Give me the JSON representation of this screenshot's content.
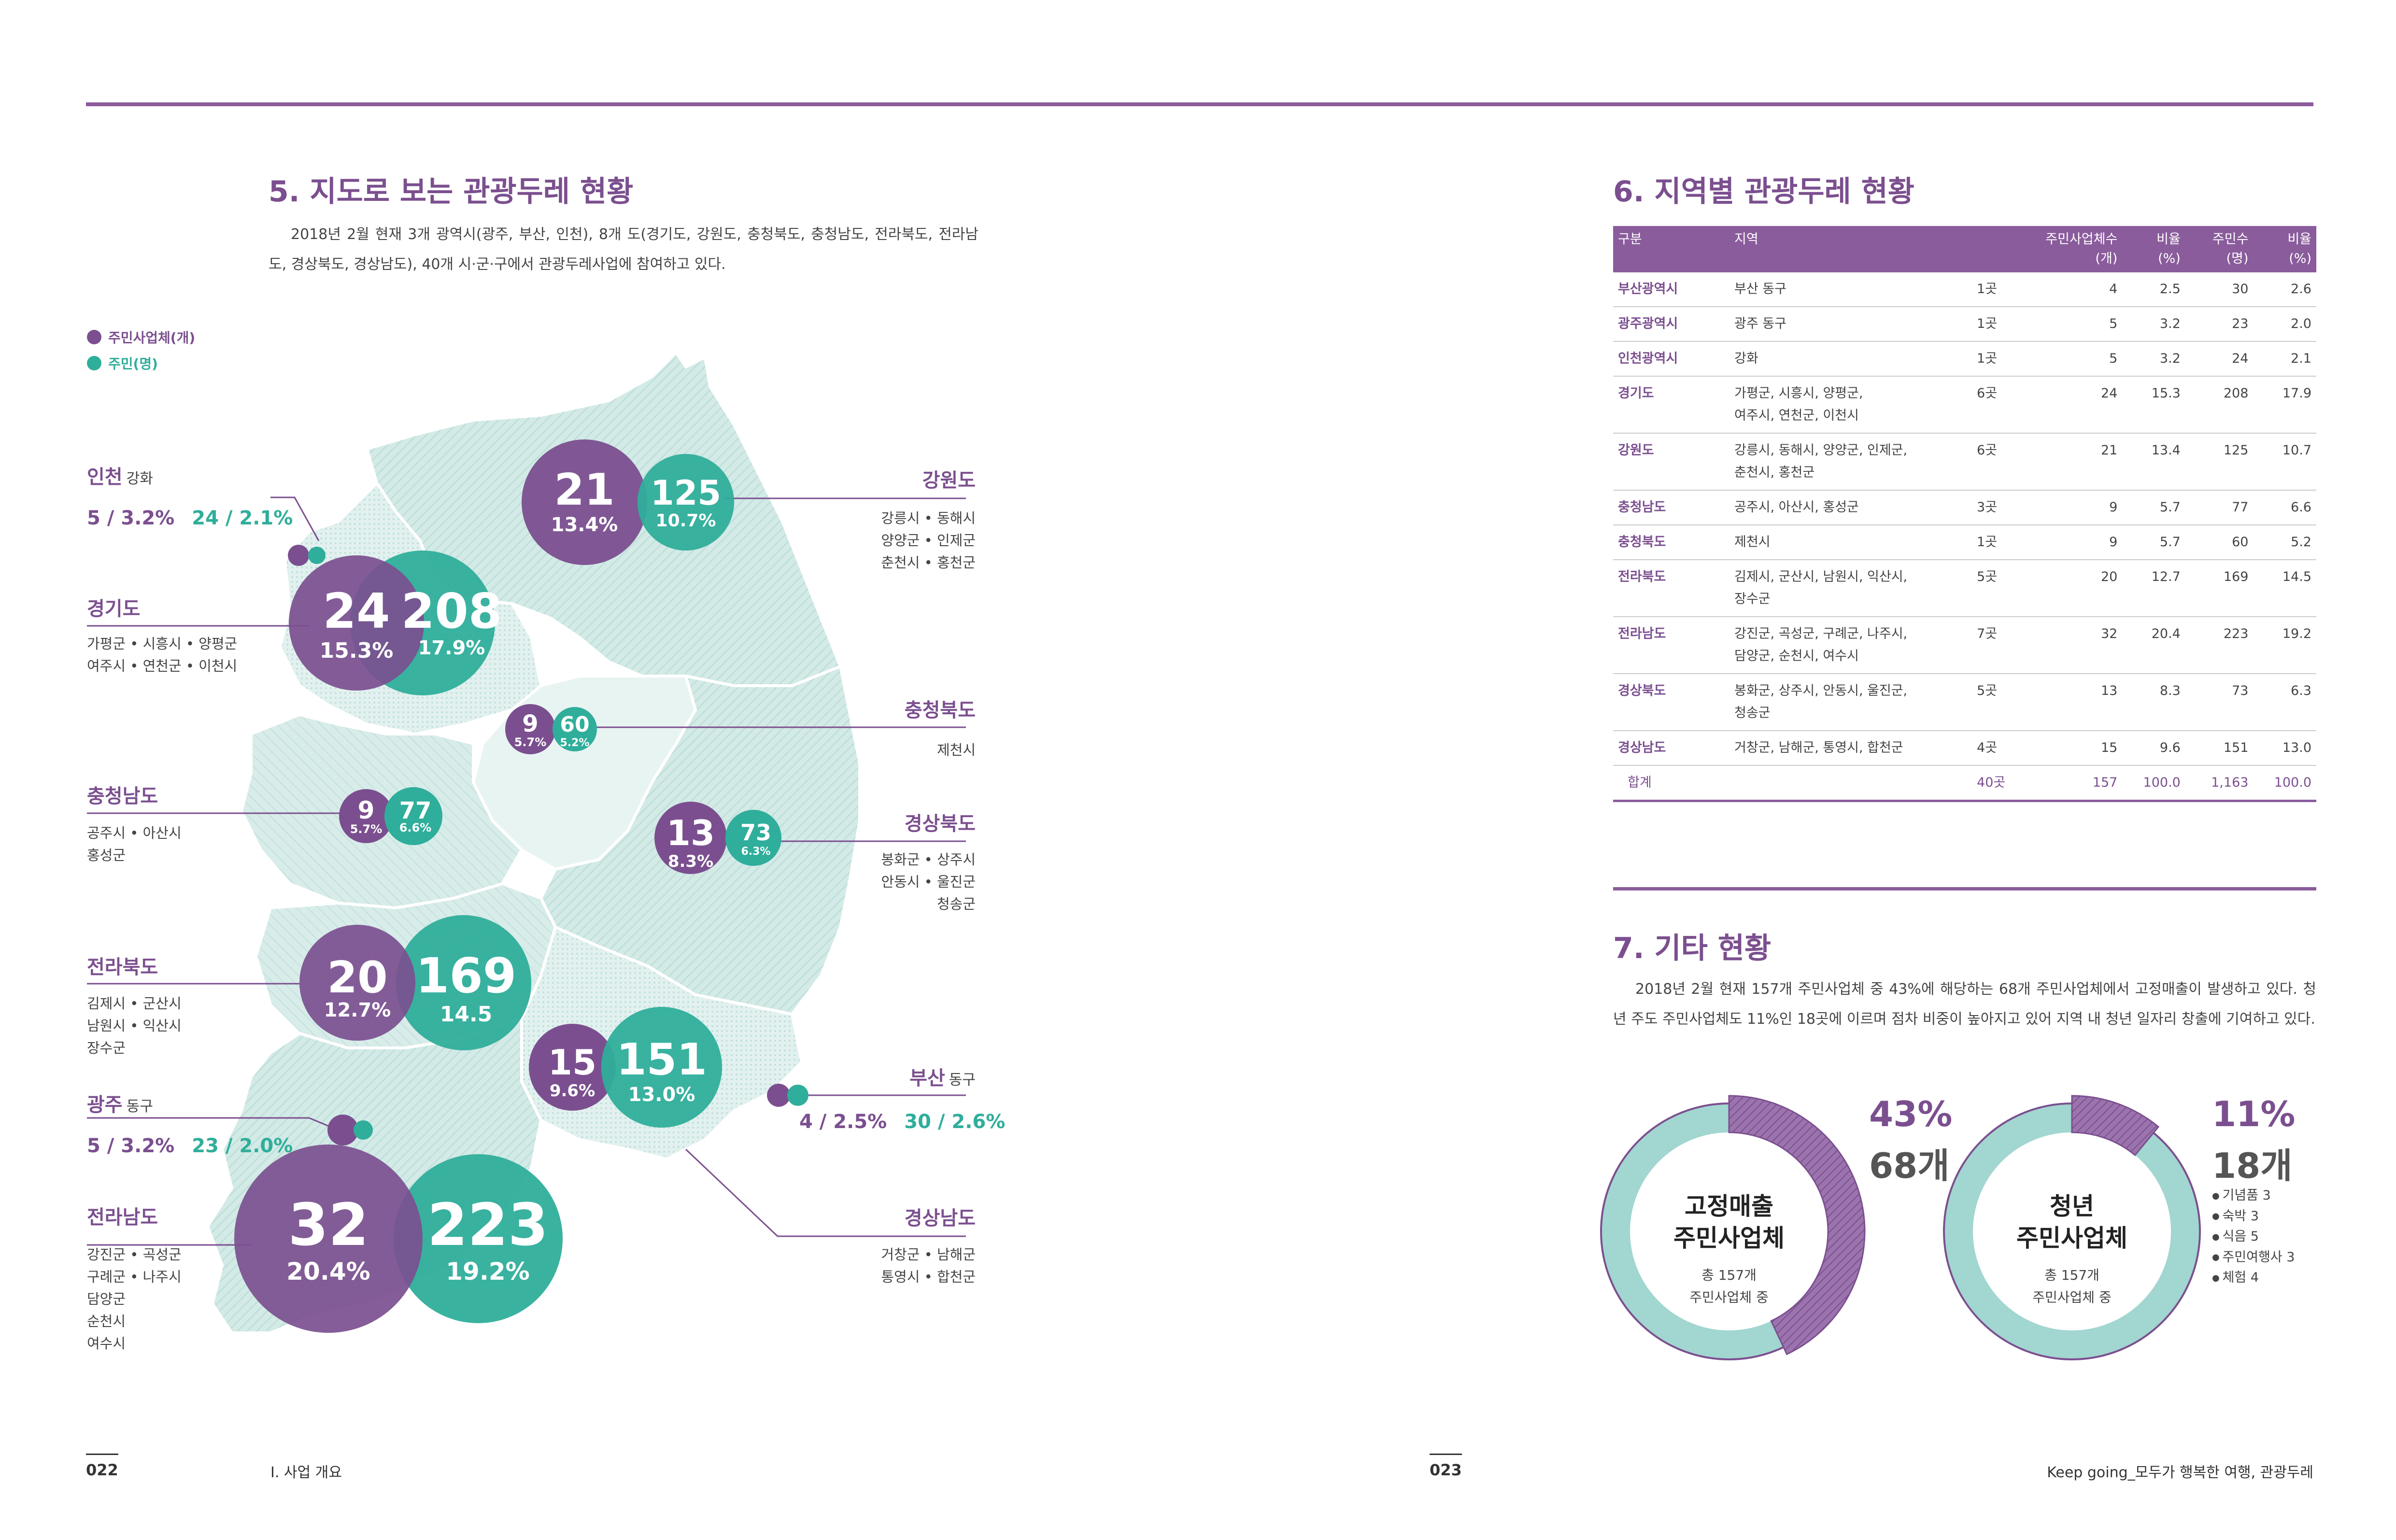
{
  "colors": {
    "purple": "#7b4f8f",
    "teal": "#2fae9b",
    "map_fill": "#cfe8e4",
    "map_line": "#ffffff"
  },
  "left": {
    "title": "5. 지도로 보는 관광두레 현황",
    "intro": "2018년 2월 현재 3개 광역시(광주, 부산, 인천), 8개 도(경기도, 강원도, 충청북도, 충청남도, 전라북도, 전라남도, 경상북도, 경상남도), 40개 시·군·구에서 관광두레사업에 참여하고 있다.",
    "legend": {
      "residents_biz": "주민사업체(개)",
      "residents": "주민(명)"
    },
    "regions": {
      "incheon": {
        "name": "인천",
        "sub": "강화",
        "stat_p": "5 / 3.2%",
        "stat_t": "24 / 2.1%"
      },
      "gyeonggi": {
        "name": "경기도",
        "list": "가평군 • 시흥시 • 양평군\n여주시 • 연천군 • 이천시",
        "p_val": "24",
        "p_pct": "15.3%",
        "t_val": "208",
        "t_pct": "17.9%"
      },
      "gangwon": {
        "name": "강원도",
        "list": "강릉시 • 동해시\n양양군 • 인제군\n춘천시 • 홍천군",
        "p_val": "21",
        "p_pct": "13.4%",
        "t_val": "125",
        "t_pct": "10.7%"
      },
      "chungbuk": {
        "name": "충청북도",
        "list": "제천시",
        "p_val": "9",
        "p_pct": "5.7%",
        "t_val": "60",
        "t_pct": "5.2%"
      },
      "chungnam": {
        "name": "충청남도",
        "list": "공주시 • 아산시\n홍성군",
        "p_val": "9",
        "p_pct": "5.7%",
        "t_val": "77",
        "t_pct": "6.6%"
      },
      "gyeongbuk": {
        "name": "경상북도",
        "list": "봉화군 • 상주시\n안동시 • 울진군\n청송군",
        "p_val": "13",
        "p_pct": "8.3%",
        "t_val": "73",
        "t_pct": "6.3%"
      },
      "jeonbuk": {
        "name": "전라북도",
        "list": "김제시 • 군산시\n남원시 • 익산시\n장수군",
        "p_val": "20",
        "p_pct": "12.7%",
        "t_val": "169",
        "t_pct": "14.5"
      },
      "gwangju": {
        "name": "광주",
        "sub": "동구",
        "stat_p": "5 / 3.2%",
        "stat_t": "23 / 2.0%"
      },
      "busan": {
        "name": "부산",
        "sub": "동구",
        "stat_p": "4 / 2.5%",
        "stat_t": "30 / 2.6%"
      },
      "gyeongnam": {
        "name": "경상남도",
        "list": "거창군 • 남해군\n통영시 • 합천군",
        "p_val": "15",
        "p_pct": "9.6%",
        "t_val": "151",
        "t_pct": "13.0%"
      },
      "jeonnam": {
        "name": "전라남도",
        "list": "강진군 • 곡성군\n구례군 • 나주시\n담양군\n순천시\n여수시",
        "p_val": "32",
        "p_pct": "20.4%",
        "t_val": "223",
        "t_pct": "19.2%"
      }
    },
    "page_num": "022",
    "footer": "Ⅰ. 사업 개요"
  },
  "right": {
    "table_title": "6. 지역별 관광두레 현황",
    "table": {
      "headers": [
        "구분",
        "지역",
        "",
        "주민사업체수\n(개)",
        "비율\n(%)",
        "주민수\n(명)",
        "비율\n(%)"
      ],
      "rows": [
        [
          "부산광역시",
          "부산 동구",
          "1곳",
          "4",
          "2.5",
          "30",
          "2.6"
        ],
        [
          "광주광역시",
          "광주 동구",
          "1곳",
          "5",
          "3.2",
          "23",
          "2.0"
        ],
        [
          "인천광역시",
          "강화",
          "1곳",
          "5",
          "3.2",
          "24",
          "2.1"
        ],
        [
          "경기도",
          "가평군, 시흥시, 양평군,\n여주시, 연천군, 이천시",
          "6곳",
          "24",
          "15.3",
          "208",
          "17.9"
        ],
        [
          "강원도",
          "강릉시, 동해시, 양양군, 인제군,\n춘천시, 홍천군",
          "6곳",
          "21",
          "13.4",
          "125",
          "10.7"
        ],
        [
          "충청남도",
          "공주시, 아산시, 홍성군",
          "3곳",
          "9",
          "5.7",
          "77",
          "6.6"
        ],
        [
          "충청북도",
          "제천시",
          "1곳",
          "9",
          "5.7",
          "60",
          "5.2"
        ],
        [
          "전라북도",
          "김제시, 군산시, 남원시, 익산시,\n장수군",
          "5곳",
          "20",
          "12.7",
          "169",
          "14.5"
        ],
        [
          "전라남도",
          "강진군, 곡성군, 구례군, 나주시,\n담양군, 순천시, 여수시",
          "7곳",
          "32",
          "20.4",
          "223",
          "19.2"
        ],
        [
          "경상북도",
          "봉화군, 상주시, 안동시, 울진군,\n청송군",
          "5곳",
          "13",
          "8.3",
          "73",
          "6.3"
        ],
        [
          "경상남도",
          "거창군, 남해군, 통영시, 합천군",
          "4곳",
          "15",
          "9.6",
          "151",
          "13.0"
        ]
      ],
      "total": [
        "합계",
        "",
        "40곳",
        "157",
        "100.0",
        "1,163",
        "100.0"
      ]
    },
    "other_title": "7. 기타 현황",
    "other_text": "2018년 2월 현재 157개 주민사업체 중 43%에 해당하는 68개 주민사업체에서 고정매출이 발생하고 있다. 청년 주도 주민사업체도 11%인 18곳에 이르며 점차 비중이 높아지고 있어 지역 내 청년 일자리 창출에 기여하고 있다.",
    "donut1": {
      "pct": "43%",
      "count": "68개",
      "title": "고정매출\n주민사업체",
      "sub": "총 157개\n주민사업체 중",
      "share": 43
    },
    "donut2": {
      "pct": "11%",
      "count": "18개",
      "title": "청년\n주민사업체",
      "sub": "총 157개\n주민사업체 중",
      "share": 11,
      "items": [
        "기념품 3",
        "숙박 3",
        "식음 5",
        "주민여행사 3",
        "체험 4"
      ]
    },
    "page_num": "023",
    "footer": "Keep going_모두가 행복한 여행, 관광두레"
  }
}
